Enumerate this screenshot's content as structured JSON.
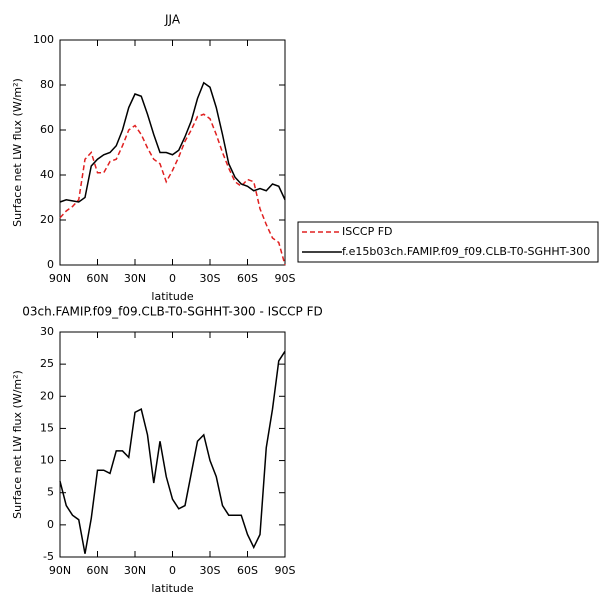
{
  "chart_data": [
    {
      "type": "line",
      "title": "JJA",
      "xlabel": "latitude",
      "ylabel": "Surface net LW flux (W/m²)",
      "x": [
        90,
        85,
        80,
        75,
        70,
        65,
        60,
        55,
        50,
        45,
        40,
        35,
        30,
        25,
        20,
        15,
        10,
        5,
        0,
        -5,
        -10,
        -15,
        -20,
        -25,
        -30,
        -35,
        -40,
        -45,
        -50,
        -55,
        -60,
        -65,
        -70,
        -75,
        -80,
        -85,
        -90
      ],
      "series": [
        {
          "name": "ISCCP FD",
          "color": "#e02020",
          "dash": true,
          "values": [
            21,
            24,
            26,
            29,
            47,
            50,
            41,
            41,
            46,
            47,
            53,
            60,
            62,
            58,
            52,
            47,
            45,
            37,
            42,
            48,
            55,
            60,
            66,
            67,
            65,
            58,
            50,
            43,
            37,
            35,
            38,
            37,
            25,
            18,
            12,
            10,
            0
          ]
        },
        {
          "name": "f.e15b03ch.FAMIP.f09_f09.CLB-T0-SGHHT-300",
          "color": "#000000",
          "dash": false,
          "values": [
            28,
            29,
            28.5,
            28,
            30,
            44,
            47,
            49,
            50,
            53,
            60,
            70,
            76,
            75,
            67,
            58,
            50,
            50,
            49,
            51,
            57,
            64,
            74,
            81,
            79,
            70,
            58,
            45,
            39,
            36,
            35,
            33,
            34,
            33,
            36,
            35,
            29
          ]
        }
      ],
      "xlim": [
        90,
        -90
      ],
      "xticks": [
        {
          "value": 90,
          "label": "90N"
        },
        {
          "value": 60,
          "label": "60N"
        },
        {
          "value": 30,
          "label": "30N"
        },
        0,
        {
          "value": -30,
          "label": "30S"
        },
        {
          "value": -60,
          "label": "60S"
        },
        {
          "value": -90,
          "label": "90S"
        }
      ],
      "ylim": [
        0,
        100
      ],
      "yticks": [
        0,
        20,
        40,
        60,
        80,
        100
      ],
      "legend": "right"
    },
    {
      "type": "line",
      "title": "03ch.FAMIP.f09_f09.CLB-T0-SGHHT-300 - ISCCP FD",
      "xlabel": "latitude",
      "ylabel": "Surface net LW flux (W/m²)",
      "x": [
        90,
        85,
        80,
        75,
        70,
        65,
        60,
        55,
        50,
        45,
        40,
        35,
        30,
        25,
        20,
        15,
        10,
        5,
        0,
        -5,
        -10,
        -15,
        -20,
        -25,
        -30,
        -35,
        -40,
        -45,
        -50,
        -55,
        -60,
        -65,
        -70,
        -75,
        -80,
        -85,
        -90
      ],
      "series": [
        {
          "color": "#000000",
          "dash": false,
          "values": [
            6.8,
            3,
            1.5,
            0.8,
            -4.5,
            1,
            8.5,
            8.5,
            8,
            11.5,
            11.5,
            10.5,
            17.5,
            18,
            14,
            6.5,
            13,
            7.5,
            4,
            2.5,
            3,
            8,
            13,
            14,
            10,
            7.5,
            3,
            1.5,
            1.5,
            1.5,
            -1.5,
            -3.5,
            -1.5,
            12,
            18,
            25.5,
            27
          ]
        }
      ],
      "xlim": [
        90,
        -90
      ],
      "xticks": [
        {
          "value": 90,
          "label": "90N"
        },
        {
          "value": 60,
          "label": "60N"
        },
        {
          "value": 30,
          "label": "30N"
        },
        0,
        {
          "value": -30,
          "label": "30S"
        },
        {
          "value": -60,
          "label": "60S"
        },
        {
          "value": -90,
          "label": "90S"
        }
      ],
      "ylim": [
        -5,
        30
      ],
      "yticks": [
        -5,
        0,
        5,
        10,
        15,
        20,
        25,
        30
      ]
    }
  ]
}
